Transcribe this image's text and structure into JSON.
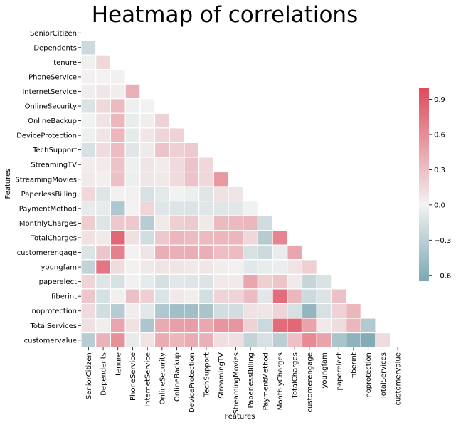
{
  "chart_data": {
    "type": "heatmap",
    "title": "Heatmap of correlations",
    "xlabel": "Features",
    "ylabel": "Features",
    "features": [
      "SeniorCitizen",
      "Dependents",
      "tenure",
      "PhoneService",
      "InternetService",
      "OnlineSecurity",
      "OnlineBackup",
      "DeviceProtection",
      "TechSupport",
      "StreamingTV",
      "StreamingMovies",
      "PaperlessBilling",
      "PaymentMethod",
      "MonthlyCharges",
      "TotalCharges",
      "customerengage",
      "youngfam",
      "paperelect",
      "fiberint",
      "noprotection",
      "TotalServices",
      "customervalue"
    ],
    "mask": "upper-triangle",
    "lower_triangle_values": [
      [],
      [
        -0.21
      ],
      [
        0.02,
        0.16
      ],
      [
        0.01,
        -0.0,
        0.01
      ],
      [
        0.03,
        0.07,
        0.03,
        0.39
      ],
      [
        -0.13,
        0.15,
        0.33,
        -0.02,
        0.0
      ],
      [
        -0.01,
        0.09,
        0.36,
        -0.05,
        0.03,
        0.19
      ],
      [
        -0.02,
        0.08,
        0.36,
        -0.07,
        0.07,
        0.17,
        0.19
      ],
      [
        -0.15,
        0.13,
        0.32,
        -0.1,
        0.05,
        0.28,
        0.21,
        0.24
      ],
      [
        0.03,
        0.05,
        0.28,
        -0.02,
        0.08,
        0.04,
        0.14,
        0.28,
        0.16
      ],
      [
        0.05,
        0.02,
        0.29,
        -0.03,
        0.07,
        0.06,
        0.14,
        0.28,
        0.16,
        0.53
      ],
      [
        0.16,
        -0.11,
        0.01,
        0.02,
        -0.15,
        -0.08,
        0.0,
        -0.03,
        -0.1,
        0.1,
        0.08
      ],
      [
        -0.06,
        -0.06,
        -0.37,
        -0.0,
        0.17,
        -0.1,
        -0.12,
        -0.13,
        -0.1,
        -0.1,
        -0.09,
        -0.01
      ],
      [
        0.22,
        -0.11,
        0.25,
        0.25,
        -0.32,
        0.05,
        0.21,
        0.24,
        0.06,
        0.33,
        0.34,
        0.35,
        -0.19
      ],
      [
        0.1,
        0.06,
        0.83,
        0.11,
        -0.18,
        0.25,
        0.36,
        0.33,
        0.33,
        0.35,
        0.36,
        0.16,
        -0.33,
        0.65
      ],
      [
        -0.12,
        0.26,
        0.67,
        0.0,
        0.08,
        0.4,
        0.39,
        0.4,
        0.4,
        0.31,
        0.32,
        -0.15,
        -0.21,
        -0.05,
        0.45
      ],
      [
        -0.26,
        0.74,
        0.13,
        0.02,
        0.06,
        0.09,
        0.08,
        0.06,
        0.07,
        0.03,
        0.02,
        -0.09,
        -0.05,
        -0.04,
        0.09,
        0.21
      ],
      [
        0.17,
        -0.11,
        -0.15,
        0.01,
        -0.07,
        -0.16,
        -0.09,
        -0.1,
        -0.12,
        0.05,
        0.05,
        0.45,
        0.21,
        0.27,
        0.05,
        -0.25,
        -0.14
      ],
      [
        0.26,
        -0.16,
        0.02,
        0.29,
        0.21,
        -0.13,
        0.06,
        0.03,
        -0.17,
        0.18,
        0.17,
        0.32,
        -0.09,
        0.79,
        0.36,
        -0.21,
        -0.12,
        0.29
      ],
      [
        0.14,
        -0.18,
        -0.33,
        0.03,
        -0.09,
        -0.37,
        -0.44,
        -0.44,
        -0.4,
        -0.18,
        -0.18,
        0.1,
        0.08,
        0.18,
        -0.15,
        -0.52,
        -0.15,
        0.19,
        0.36
      ],
      [
        0.11,
        0.03,
        0.46,
        0.1,
        -0.38,
        0.43,
        0.49,
        0.5,
        0.44,
        0.55,
        0.55,
        0.19,
        -0.22,
        0.8,
        0.82,
        0.47,
        0.06,
        0.13,
        0.36,
        -0.35
      ],
      [
        -0.32,
        0.38,
        0.58,
        -0.06,
        0.09,
        0.42,
        0.36,
        0.41,
        0.39,
        0.12,
        0.12,
        -0.26,
        -0.15,
        -0.31,
        0.3,
        0.62,
        0.47,
        -0.4,
        -0.55,
        -0.61,
        0.13
      ]
    ],
    "colorbar": {
      "min": -0.65,
      "max": 1.0,
      "ticks": [
        -0.6,
        -0.3,
        0.0,
        0.3,
        0.6,
        0.9
      ],
      "tick_labels": [
        "−0.6",
        "−0.3",
        "0.0",
        "0.3",
        "0.6",
        "0.9"
      ]
    },
    "colormap": {
      "negative": "#7ca7b3",
      "center": "#f2f2f2",
      "positive": "#de4a5b"
    },
    "grid_line_color": "#ffffff"
  }
}
